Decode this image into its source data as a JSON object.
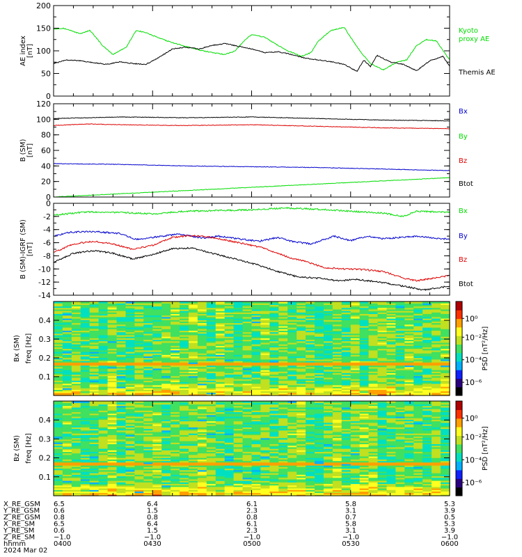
{
  "chart_data": [
    {
      "type": "line",
      "ylabel": "AE index",
      "yunit": "[nT]",
      "ylim": [
        0,
        200
      ],
      "yticks": [
        0,
        50,
        100,
        150,
        200
      ],
      "series": [
        {
          "name": "Kyoto proxy AE",
          "color": "#00dd00",
          "label_lines": [
            "Kyoto",
            "proxy AE"
          ],
          "x": [
            0,
            3,
            8,
            11,
            13,
            15,
            18,
            22,
            25,
            28,
            32,
            36,
            40,
            44,
            48,
            52,
            55,
            58,
            60,
            64,
            68,
            71,
            75,
            78,
            80,
            84,
            88,
            90,
            93,
            96,
            100,
            104,
            107,
            110,
            113,
            116,
            118,
            120
          ],
          "y": [
            148,
            150,
            138,
            145,
            128,
            110,
            92,
            108,
            145,
            140,
            128,
            118,
            110,
            102,
            96,
            92,
            100,
            124,
            136,
            130,
            112,
            100,
            88,
            96,
            120,
            145,
            152,
            130,
            98,
            72,
            58,
            75,
            80,
            112,
            125,
            122,
            100,
            80
          ]
        },
        {
          "name": "Themis AE",
          "color": "#000000",
          "label_lines": [
            "Themis AE"
          ],
          "x": [
            0,
            4,
            8,
            12,
            16,
            20,
            24,
            28,
            32,
            36,
            40,
            44,
            48,
            52,
            56,
            60,
            64,
            68,
            72,
            76,
            80,
            84,
            88,
            90,
            92,
            94,
            96,
            98,
            102,
            106,
            110,
            114,
            118,
            120
          ],
          "y": [
            72,
            80,
            78,
            74,
            70,
            76,
            72,
            70,
            86,
            104,
            108,
            104,
            112,
            116,
            110,
            104,
            96,
            98,
            92,
            84,
            80,
            76,
            70,
            62,
            55,
            80,
            65,
            90,
            75,
            70,
            56,
            78,
            88,
            66
          ]
        }
      ]
    },
    {
      "type": "line",
      "ylabel": "B (SM)",
      "yunit": "[nT]",
      "ylim": [
        0,
        120
      ],
      "yticks": [
        0,
        20,
        40,
        60,
        80,
        100,
        120
      ],
      "series": [
        {
          "name": "Bx",
          "color": "#0000cc",
          "x": [
            0,
            20,
            40,
            60,
            80,
            100,
            120
          ],
          "y": [
            43,
            42,
            40,
            39,
            38,
            36,
            34
          ]
        },
        {
          "name": "By",
          "color": "#00dd00",
          "x": [
            0,
            120
          ],
          "y": [
            0,
            25
          ]
        },
        {
          "name": "Bz",
          "color": "#dd0000",
          "x": [
            0,
            10,
            20,
            40,
            60,
            80,
            100,
            120
          ],
          "y": [
            92,
            94,
            93,
            92,
            93,
            91,
            89,
            88
          ]
        },
        {
          "name": "Btot",
          "color": "#000000",
          "x": [
            0,
            20,
            40,
            60,
            80,
            100,
            120
          ],
          "y": [
            101,
            103,
            102,
            103,
            101,
            99,
            98
          ]
        }
      ]
    },
    {
      "type": "line",
      "ylabel": "B (SM)-IGRF (SM)",
      "yunit": "[nT]",
      "ylim": [
        -14,
        0
      ],
      "yticks": [
        -14,
        -12,
        -10,
        -8,
        -6,
        -4,
        -2,
        0
      ],
      "series": [
        {
          "name": "Bx",
          "color": "#00dd00",
          "x": [
            0,
            10,
            20,
            30,
            40,
            50,
            60,
            70,
            80,
            90,
            100,
            106,
            110,
            120
          ],
          "y": [
            -1.8,
            -1.3,
            -1.4,
            -1.6,
            -1.2,
            -1.1,
            -1.0,
            -0.7,
            -0.9,
            -1.2,
            -1.5,
            -2.0,
            -1.2,
            -1.4
          ]
        },
        {
          "name": "By",
          "color": "#0000cc",
          "x": [
            0,
            5,
            12,
            20,
            25,
            30,
            38,
            45,
            50,
            56,
            62,
            68,
            72,
            78,
            85,
            90,
            95,
            100,
            110,
            120
          ],
          "y": [
            -5.0,
            -4.4,
            -4.3,
            -4.6,
            -5.5,
            -5.2,
            -4.7,
            -5.3,
            -5.0,
            -5.4,
            -5.8,
            -5.2,
            -5.8,
            -6.2,
            -5.0,
            -5.7,
            -5.0,
            -5.4,
            -5.0,
            -5.5
          ]
        },
        {
          "name": "Bz",
          "color": "#dd0000",
          "x": [
            0,
            6,
            12,
            18,
            24,
            30,
            36,
            42,
            48,
            56,
            62,
            68,
            72,
            76,
            82,
            88,
            94,
            100,
            106,
            110,
            115,
            120
          ],
          "y": [
            -7.5,
            -6.2,
            -5.8,
            -6.2,
            -7.0,
            -6.4,
            -5.2,
            -4.9,
            -5.2,
            -6.0,
            -6.6,
            -7.6,
            -8.4,
            -8.8,
            -9.8,
            -10.0,
            -10.1,
            -10.4,
            -11.4,
            -11.8,
            -11.4,
            -11.0
          ]
        },
        {
          "name": "Btot",
          "color": "#000000",
          "x": [
            0,
            6,
            12,
            18,
            24,
            30,
            36,
            42,
            48,
            56,
            62,
            68,
            74,
            80,
            86,
            92,
            100,
            108,
            112,
            116,
            120
          ],
          "y": [
            -9.0,
            -7.6,
            -7.2,
            -7.6,
            -8.5,
            -7.8,
            -6.9,
            -6.8,
            -7.6,
            -8.6,
            -9.4,
            -10.4,
            -11.2,
            -11.4,
            -11.8,
            -11.6,
            -12.1,
            -12.8,
            -13.2,
            -12.9,
            -12.6
          ]
        }
      ]
    },
    {
      "type": "heatmap",
      "panel_label_lines": [
        "Bx (SM)",
        "freq [Hz]"
      ],
      "cbar_label": "PSD [nT²/Hz]",
      "ylim": [
        0,
        0.5
      ],
      "yticks": [
        0.1,
        0.2,
        0.3,
        0.4
      ],
      "cbar_ticks": [
        "10⁰",
        "10⁻²",
        "10⁻⁴",
        "10⁻⁶"
      ],
      "seed": 7
    },
    {
      "type": "heatmap",
      "panel_label_lines": [
        "Bz (SM)",
        "freq [Hz]"
      ],
      "cbar_label": "PSD [nT²/Hz]",
      "ylim": [
        0,
        0.5
      ],
      "yticks": [
        0.1,
        0.2,
        0.3,
        0.4
      ],
      "cbar_ticks": [
        "10⁰",
        "10⁻²",
        "10⁻⁴",
        "10⁻⁶"
      ],
      "seed": 19
    }
  ],
  "ephemeris": {
    "rows": [
      {
        "label": "X_RE_GSM",
        "values": [
          "6.5",
          "6.4",
          "6.1",
          "5.8",
          "5.3"
        ]
      },
      {
        "label": "Y_RE_GSM",
        "values": [
          "0.6",
          "1.5",
          "2.3",
          "3.1",
          "3.9"
        ]
      },
      {
        "label": "Z_RE_GSM",
        "values": [
          "0.8",
          "0.8",
          "0.8",
          "0.7",
          "0.5"
        ]
      },
      {
        "label": "X_RE_SM",
        "values": [
          "6.5",
          "6.4",
          "6.1",
          "5.8",
          "5.3"
        ]
      },
      {
        "label": "Y_RE_SM",
        "values": [
          "0.6",
          "1.5",
          "2.3",
          "3.1",
          "3.9"
        ]
      },
      {
        "label": "Z_RE_SM",
        "values": [
          "−1.0",
          "−1.0",
          "−1.0",
          "−1.0",
          "−1.0"
        ]
      },
      {
        "label": "hhmm",
        "values": [
          "0400",
          "0430",
          "0500",
          "0530",
          "0600"
        ]
      }
    ],
    "date": "2024 Mar 02"
  },
  "colors": {
    "axis": "#000000",
    "cbar": [
      "#000000",
      "#2a0080",
      "#1020ff",
      "#00b0ff",
      "#00e0c0",
      "#40e060",
      "#c0e020",
      "#ffff20",
      "#ffa000",
      "#ff3000",
      "#b00000"
    ]
  }
}
